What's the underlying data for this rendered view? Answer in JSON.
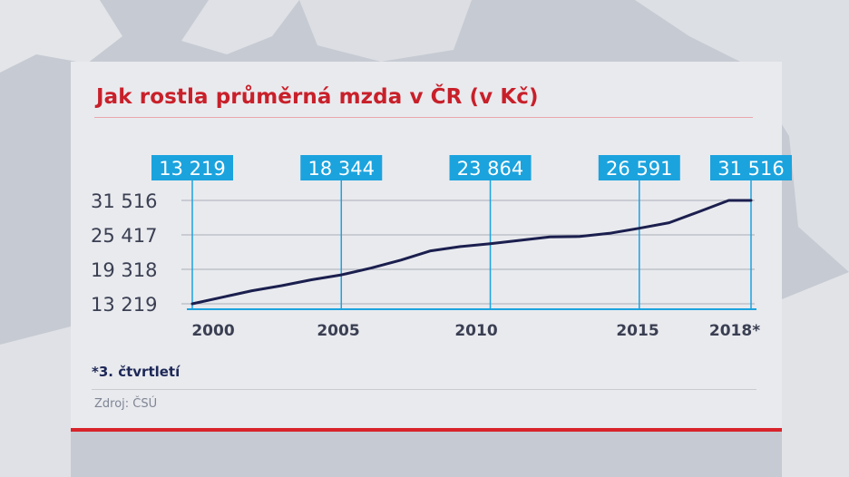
{
  "chart_data": {
    "type": "line",
    "title": "Jak rostla průměrná mzda v ČR (v Kč)",
    "x_tick_labels": [
      "2000",
      "2005",
      "2010",
      "2015",
      "2018*"
    ],
    "y_tick_labels": [
      "31 516",
      "25 417",
      "19 318",
      "13 219"
    ],
    "y_ticks": [
      31516,
      25417,
      19318,
      13219
    ],
    "ylim": [
      13219,
      31516
    ],
    "xlim": [
      2000,
      2018.75
    ],
    "grid": "horizontal",
    "series": [
      {
        "x": [
          2000,
          2001,
          2002,
          2003,
          2004,
          2005,
          2006,
          2007,
          2008,
          2009,
          2010,
          2011,
          2012,
          2013,
          2014,
          2015,
          2016,
          2017,
          2018,
          2018.75
        ],
        "values": [
          13219,
          14378,
          15524,
          16430,
          17466,
          18344,
          19546,
          20957,
          22592,
          23344,
          23864,
          24455,
          25067,
          25128,
          25686,
          26591,
          27575,
          29504,
          31516,
          31516
        ],
        "color": "#1b1f4e"
      }
    ],
    "callouts": [
      {
        "label": "13 219",
        "x": 2000
      },
      {
        "label": "18 344",
        "x": 2005
      },
      {
        "label": "23 864",
        "x": 2010
      },
      {
        "label": "26 591",
        "x": 2015
      },
      {
        "label": "31 516",
        "x": 2018.75
      }
    ]
  },
  "footnote": "*3. čtvrtletí",
  "source": "Zdroj: ČSÚ",
  "colors": {
    "accent": "#c8202a",
    "callout": "#1ba3de",
    "line": "#1b1f4e"
  }
}
